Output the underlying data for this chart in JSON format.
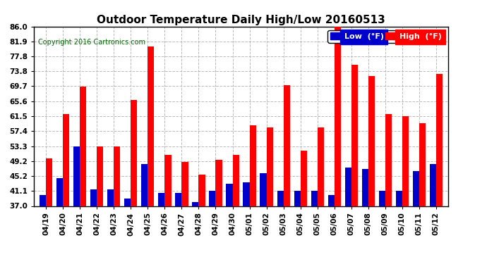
{
  "title": "Outdoor Temperature Daily High/Low 20160513",
  "copyright": "Copyright 2016 Cartronics.com",
  "categories": [
    "04/19",
    "04/20",
    "04/21",
    "04/22",
    "04/23",
    "04/24",
    "04/25",
    "04/26",
    "04/27",
    "04/28",
    "04/29",
    "04/30",
    "05/01",
    "05/02",
    "05/03",
    "05/04",
    "05/05",
    "05/06",
    "05/07",
    "05/08",
    "05/09",
    "05/10",
    "05/11",
    "05/12"
  ],
  "high": [
    50.0,
    62.0,
    69.5,
    53.3,
    53.3,
    66.0,
    80.5,
    51.0,
    49.0,
    45.5,
    49.5,
    51.0,
    59.0,
    58.5,
    70.0,
    52.0,
    58.5,
    86.0,
    75.5,
    72.5,
    62.0,
    61.5,
    59.5,
    73.0
  ],
  "low": [
    40.0,
    44.5,
    53.3,
    41.5,
    41.5,
    39.0,
    48.5,
    40.5,
    40.5,
    38.0,
    41.1,
    43.0,
    43.5,
    46.0,
    41.1,
    41.1,
    41.1,
    40.0,
    47.5,
    47.0,
    41.1,
    41.1,
    46.5,
    48.5
  ],
  "high_color": "#ff0000",
  "low_color": "#0000cc",
  "ylim_min": 37.0,
  "ylim_max": 86.0,
  "yticks": [
    37.0,
    41.1,
    45.2,
    49.2,
    53.3,
    57.4,
    61.5,
    65.6,
    69.7,
    73.8,
    77.8,
    81.9,
    86.0
  ],
  "background_color": "#ffffff",
  "grid_color": "#bbbbbb",
  "bar_width": 0.38,
  "title_fontsize": 11,
  "tick_fontsize": 7.5,
  "copyright_fontsize": 7,
  "legend_labels": [
    "Low  (°F)",
    "High  (°F)"
  ],
  "legend_fontsize": 8
}
